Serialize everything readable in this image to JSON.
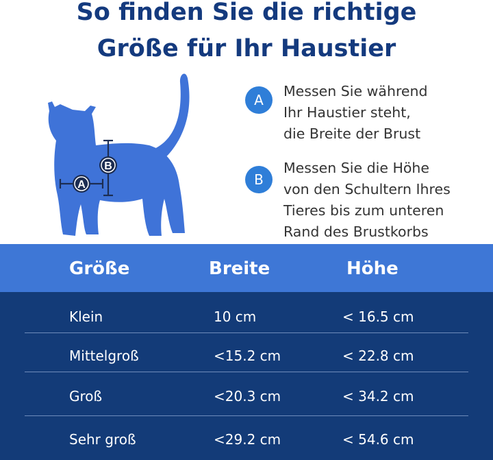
{
  "title": {
    "line1": "So finden Sie die richtige",
    "line2": "Größe für Ihr Haustier"
  },
  "illustration": {
    "icon": "cat-silhouette-icon",
    "marker_a": "A",
    "marker_b": "B",
    "cat_color": "#3f73d8",
    "marker_color": "#1c2d52"
  },
  "steps": [
    {
      "badge": "A",
      "text": "Messen Sie während\nIhr Haustier steht,\ndie Breite der Brust"
    },
    {
      "badge": "B",
      "text": "Messen Sie die Höhe\nvon den Schultern Ihres\nTieres bis zum unteren\nRand des Brustkorbs"
    }
  ],
  "table": {
    "headers": [
      "Größe",
      "Breite",
      "Höhe"
    ],
    "rows": [
      [
        "Klein",
        "10 cm",
        "< 16.5 cm"
      ],
      [
        "Mittelgroß",
        "<15.2 cm",
        "< 22.8 cm"
      ],
      [
        "Groß",
        "<20.3 cm",
        "< 34.2 cm"
      ],
      [
        "Sehr groß",
        "<29.2 cm",
        "< 54.6 cm"
      ]
    ],
    "header_color": "#3e77d6",
    "body_color": "#133b78"
  }
}
